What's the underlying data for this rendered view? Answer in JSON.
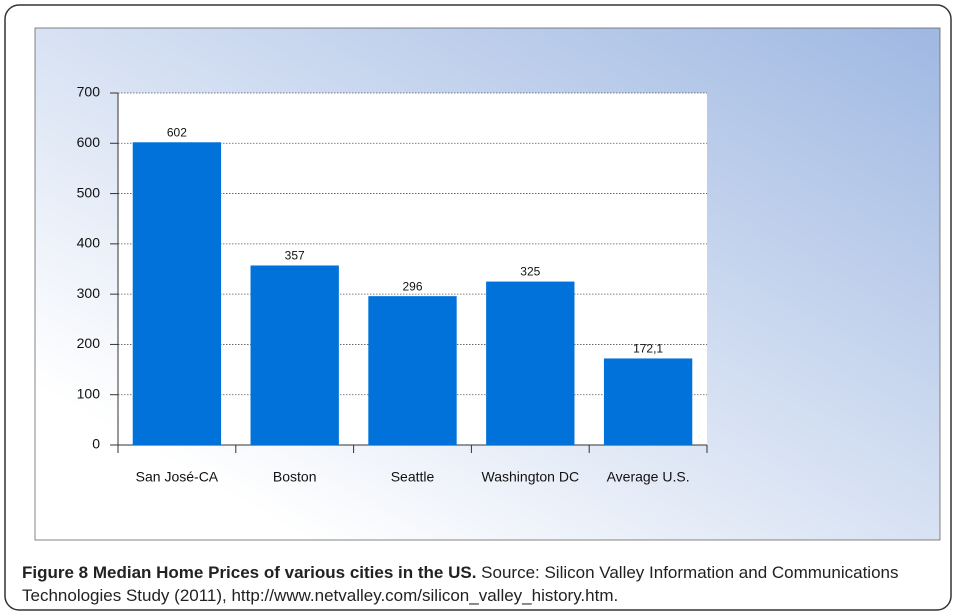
{
  "chart_data": {
    "type": "bar",
    "figure_label": "Figure 8",
    "title": "Median Home Prices of various cities in the US.",
    "caption": "Source: Silicon Valley Information and Communications Technologies Study (2011), http://www.netvalley.com/silicon_valley_history.htm.",
    "categories": [
      "San José-CA",
      "Boston",
      "Seattle",
      "Washington DC",
      "Average U.S."
    ],
    "values": [
      602,
      357,
      296,
      325,
      172.1
    ],
    "value_labels": [
      "602",
      "357",
      "296",
      "325",
      "172,1"
    ],
    "color": "#0072d9",
    "ylim": [
      0,
      700
    ],
    "yticks": [
      0,
      100,
      200,
      300,
      400,
      500,
      600,
      700
    ],
    "grid": true
  }
}
